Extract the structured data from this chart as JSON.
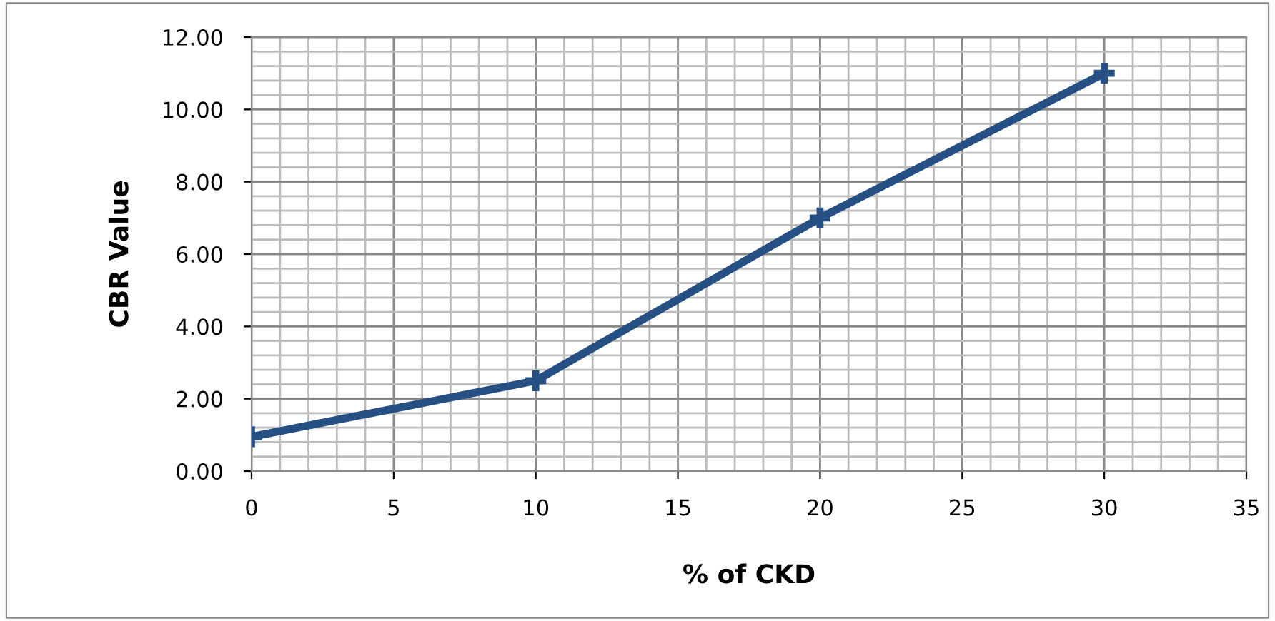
{
  "chart_data": {
    "type": "line",
    "xlabel": "% of CKD",
    "ylabel": "CBR Value",
    "x": [
      0,
      10,
      20,
      30
    ],
    "series": [
      {
        "color": "#264f84",
        "values": [
          0.95,
          2.5,
          7.0,
          11.0
        ]
      }
    ],
    "xlim": [
      0,
      35
    ],
    "xticks": [
      0,
      5,
      10,
      15,
      20,
      25,
      30,
      35
    ],
    "ylim": [
      0,
      12
    ],
    "yticks": [
      {
        "value": 0,
        "label": "0.00"
      },
      {
        "value": 2,
        "label": "2.00"
      },
      {
        "value": 4,
        "label": "4.00"
      },
      {
        "value": 6,
        "label": "6.00"
      },
      {
        "value": 8,
        "label": "8.00"
      },
      {
        "value": 10,
        "label": "10.00"
      },
      {
        "value": 12,
        "label": "12.00"
      }
    ],
    "grid": true,
    "marker": "cross",
    "line_style": "solid"
  }
}
